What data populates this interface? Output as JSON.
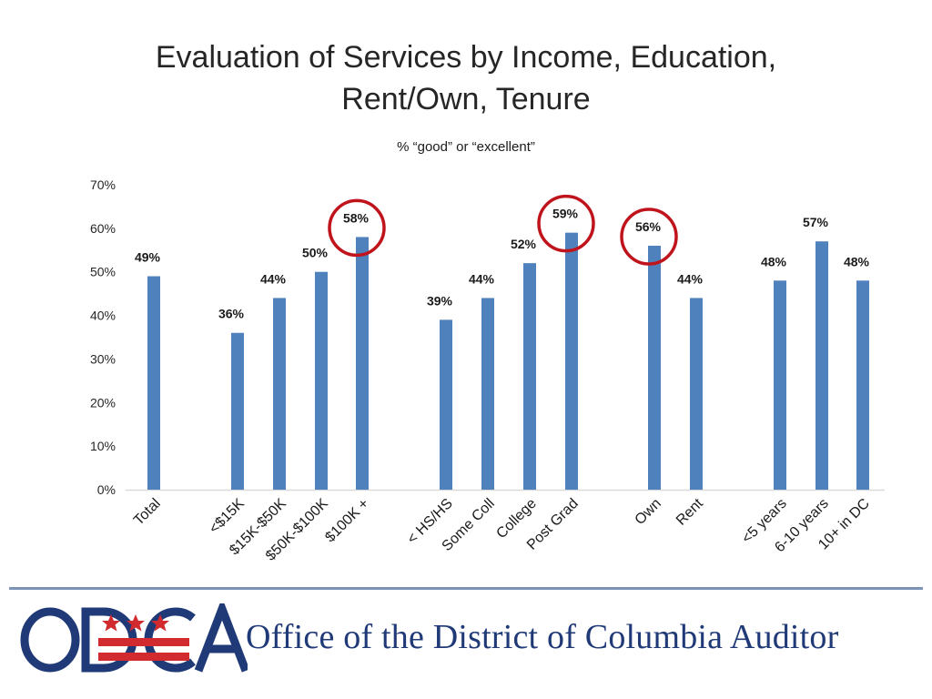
{
  "header": {
    "title_line1": "Evaluation of Services by Income, Education,",
    "title_line2": "Rent/Own, Tenure",
    "subtitle": "% “good” or “excellent”"
  },
  "footer": {
    "org_name": "Office of the District of Columbia Auditor",
    "logo_text": "ODCA"
  },
  "colors": {
    "bar": "#4f81bd",
    "circle": "#c0141c",
    "axis": "#d9d9d9",
    "brand_navy": "#203a78",
    "brand_red": "#d12a2f"
  },
  "chart_data": {
    "type": "bar",
    "title": "Evaluation of Services by Income, Education, Rent/Own, Tenure",
    "subtitle": "% “good” or “excellent”",
    "ylim": [
      0,
      70
    ],
    "yticks": [
      "0%",
      "10%",
      "20%",
      "30%",
      "40%",
      "50%",
      "60%",
      "70%"
    ],
    "grid": false,
    "categories": [
      "Total",
      "<$15K",
      "$15K-$50K",
      "$50K-$100K",
      "$100K +",
      "< HS/HS",
      "Some Coll",
      "College",
      "Post Grad",
      "Own",
      "Rent",
      "<5 years",
      "6-10 years",
      "10+ in DC"
    ],
    "values": [
      49,
      36,
      44,
      50,
      58,
      39,
      44,
      52,
      59,
      56,
      44,
      48,
      57,
      48
    ],
    "data_labels": [
      "49%",
      "36%",
      "44%",
      "50%",
      "58%",
      "39%",
      "44%",
      "52%",
      "59%",
      "56%",
      "44%",
      "48%",
      "57%",
      "48%"
    ],
    "highlighted": [
      "$100K +",
      "Post Grad",
      "Own"
    ]
  }
}
